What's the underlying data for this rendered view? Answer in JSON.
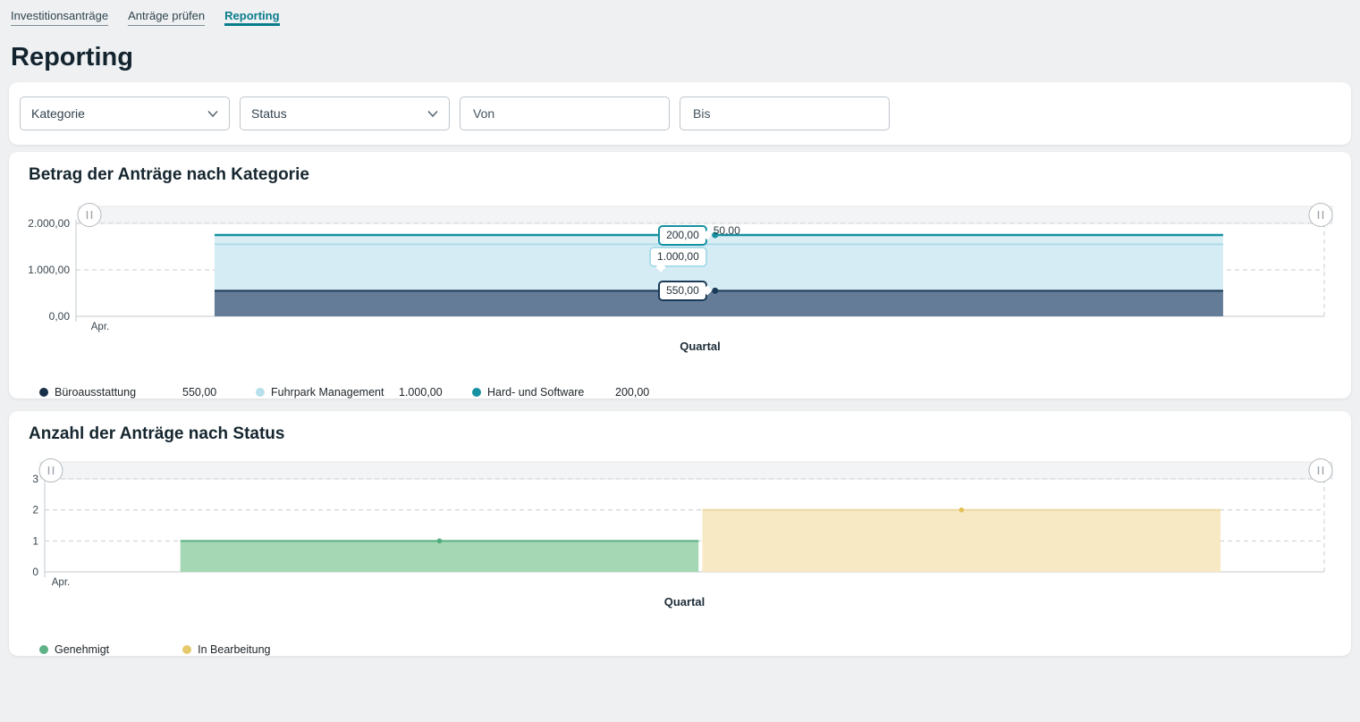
{
  "nav": {
    "tabs": [
      {
        "label": "Investitionsanträge",
        "active": false
      },
      {
        "label": "Anträge prüfen",
        "active": false
      },
      {
        "label": "Reporting",
        "active": true
      }
    ]
  },
  "page_title": "Reporting",
  "filters": {
    "kategorie": {
      "label": "Kategorie"
    },
    "status": {
      "label": "Status"
    },
    "von": {
      "placeholder": "Von"
    },
    "bis": {
      "placeholder": "Bis"
    }
  },
  "colors": {
    "accent_teal": "#0a7d8c",
    "grid": "#c8ccd0"
  },
  "chart_data": [
    {
      "type": "area",
      "stacked": true,
      "title": "Betrag der Anträge nach Kategorie",
      "xlabel": "Quartal",
      "x_ticks": [
        "Apr."
      ],
      "ylim": [
        0,
        2000
      ],
      "y_ticks": [
        {
          "value": 2000,
          "label": "2.000,00"
        },
        {
          "value": 1000,
          "label": "1.000,00"
        },
        {
          "value": 0,
          "label": "0,00"
        }
      ],
      "grid": true,
      "legend_position": "bottom",
      "band": {
        "start_frac": 0.111,
        "end_frac": 0.919
      },
      "marker_x_frac": 0.512,
      "truncated_label": "50,00",
      "series": [
        {
          "name": "Büroausstattung",
          "value": 550,
          "label": "550,00",
          "line_color": "#1b3a57",
          "fill_color": "#647c98",
          "legend_color": "#17304a"
        },
        {
          "name": "Fuhrpark Management",
          "value": 1000,
          "label": "1.000,00",
          "line_color": "#abdcea",
          "fill_color": "#d6ecf4",
          "legend_color": "#b8e0ec"
        },
        {
          "name": "Hard- und Software",
          "value": 200,
          "label": "200,00",
          "line_color": "#1691a2",
          "fill_color": "#d9edf3",
          "legend_color": "#1691a2"
        }
      ]
    },
    {
      "type": "area",
      "stacked": false,
      "title": "Anzahl der Anträge nach Status",
      "xlabel": "Quartal",
      "x_ticks": [
        "Apr."
      ],
      "ylim": [
        0,
        3
      ],
      "y_ticks": [
        {
          "value": 3,
          "label": "3"
        },
        {
          "value": 2,
          "label": "2"
        },
        {
          "value": 1,
          "label": "1"
        },
        {
          "value": 0,
          "label": "0"
        }
      ],
      "grid": true,
      "legend_position": "bottom",
      "series": [
        {
          "name": "Genehmigt",
          "value": 1,
          "band": {
            "start_frac": 0.106,
            "end_frac": 0.511
          },
          "line_color": "#57b183",
          "fill_color": "#a6d7b4",
          "dot_color": "#54ad7e",
          "legend_color": "#5eb286"
        },
        {
          "name": "In Bearbeitung",
          "value": 2,
          "band": {
            "start_frac": 0.514,
            "end_frac": 0.919
          },
          "line_color": "#eed9a1",
          "fill_color": "#f6e9c3",
          "dot_color": "#e3c258",
          "legend_color": "#e6c96c"
        }
      ]
    }
  ]
}
